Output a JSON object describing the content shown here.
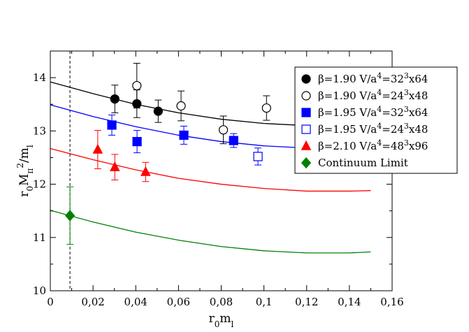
{
  "chart_data": {
    "type": "scatter",
    "title": "",
    "xlabel": {
      "base": "r",
      "sub1": "0",
      "base2": "m",
      "sub2": "l"
    },
    "ylabel": {
      "base": "r",
      "sub1": "0",
      "base2": "M",
      "sub2": "π",
      "sup2": "2",
      "base3": "/m",
      "sub3": "l"
    },
    "xlim": [
      0,
      0.16
    ],
    "ylim": [
      10,
      14.5
    ],
    "xticks": [
      {
        "value": 0,
        "label": "0"
      },
      {
        "value": 0.02,
        "label": "0,02"
      },
      {
        "value": 0.04,
        "label": "0,04"
      },
      {
        "value": 0.06,
        "label": "0,06"
      },
      {
        "value": 0.08,
        "label": "0,08"
      },
      {
        "value": 0.1,
        "label": "0,1"
      },
      {
        "value": 0.12,
        "label": "0,12"
      },
      {
        "value": 0.14,
        "label": "0,14"
      },
      {
        "value": 0.16,
        "label": "0,16"
      }
    ],
    "yticks": [
      {
        "value": 10,
        "label": "10"
      },
      {
        "value": 11,
        "label": "11"
      },
      {
        "value": 12,
        "label": "12"
      },
      {
        "value": 13,
        "label": "13"
      },
      {
        "value": 14,
        "label": "14"
      }
    ],
    "vline": {
      "x": 0.0092,
      "style": "dashed",
      "color": "#000000"
    },
    "legend_placement": "right",
    "grid": false,
    "series": [
      {
        "legend": {
          "pre": "β=1.90 V/a",
          "sup1": "4",
          "mid": "=32",
          "sup2": "3",
          "post": "x64"
        },
        "marker": "circle",
        "filled": true,
        "color": "#000000",
        "points": [
          {
            "x": 0.0302,
            "y": 13.6,
            "err": 0.26
          },
          {
            "x": 0.0405,
            "y": 13.51,
            "err": 0.26
          },
          {
            "x": 0.0505,
            "y": 13.37,
            "err": 0.21
          }
        ]
      },
      {
        "legend": {
          "pre": "β=1.90 V/a",
          "sup1": "4",
          "mid": "=24",
          "sup2": "3",
          "post": "x48"
        },
        "marker": "circle",
        "filled": false,
        "color": "#000000",
        "points": [
          {
            "x": 0.0405,
            "y": 13.85,
            "err": 0.42
          },
          {
            "x": 0.0612,
            "y": 13.47,
            "err": 0.28
          },
          {
            "x": 0.081,
            "y": 13.02,
            "err": 0.26
          },
          {
            "x": 0.1012,
            "y": 13.43,
            "err": 0.23
          }
        ]
      },
      {
        "legend": {
          "pre": "β=1.95 V/a",
          "sup1": "4",
          "mid": "=32",
          "sup2": "3",
          "post": "x64"
        },
        "marker": "square",
        "filled": true,
        "color": "#0000ff",
        "points": [
          {
            "x": 0.0288,
            "y": 13.11,
            "err": 0.19
          },
          {
            "x": 0.0406,
            "y": 12.8,
            "err": 0.21
          },
          {
            "x": 0.0625,
            "y": 12.92,
            "err": 0.17
          },
          {
            "x": 0.0858,
            "y": 12.82,
            "err": 0.13
          }
        ]
      },
      {
        "legend": {
          "pre": "β=1.95 V/a",
          "sup1": "4",
          "mid": "=24",
          "sup2": "3",
          "post": "x48"
        },
        "marker": "square",
        "filled": false,
        "color": "#0000ff",
        "points": [
          {
            "x": 0.0972,
            "y": 12.52,
            "err": 0.16
          }
        ]
      },
      {
        "legend": {
          "pre": "β=2.10 V/a",
          "sup1": "4",
          "mid": "=48",
          "sup2": "3",
          "post": "x96"
        },
        "marker": "triangle",
        "filled": true,
        "color": "#ff0000",
        "points": [
          {
            "x": 0.0222,
            "y": 12.65,
            "err": 0.36
          },
          {
            "x": 0.0302,
            "y": 12.32,
            "err": 0.24
          },
          {
            "x": 0.0446,
            "y": 12.23,
            "err": 0.18
          }
        ]
      },
      {
        "legend": {
          "pre": "Continuum Limit",
          "sup1": "",
          "mid": "",
          "sup2": "",
          "post": ""
        },
        "marker": "diamond",
        "filled": true,
        "color": "#008000",
        "points": [
          {
            "x": 0.0092,
            "y": 11.41,
            "err": 0.54
          }
        ]
      }
    ],
    "fit_curves": [
      {
        "color": "#000000",
        "points": [
          [
            0,
            13.92
          ],
          [
            0.02,
            13.7
          ],
          [
            0.04,
            13.5
          ],
          [
            0.06,
            13.34
          ],
          [
            0.08,
            13.22
          ],
          [
            0.1,
            13.14
          ],
          [
            0.12,
            13.1
          ],
          [
            0.14,
            13.1
          ],
          [
            0.15,
            13.12
          ]
        ]
      },
      {
        "color": "#0000ff",
        "points": [
          [
            0,
            13.49
          ],
          [
            0.02,
            13.27
          ],
          [
            0.04,
            13.08
          ],
          [
            0.06,
            12.92
          ],
          [
            0.08,
            12.8
          ],
          [
            0.1,
            12.72
          ],
          [
            0.12,
            12.68
          ],
          [
            0.14,
            12.68
          ],
          [
            0.15,
            12.7
          ]
        ]
      },
      {
        "color": "#ff0000",
        "points": [
          [
            0,
            12.67
          ],
          [
            0.02,
            12.46
          ],
          [
            0.04,
            12.27
          ],
          [
            0.06,
            12.11
          ],
          [
            0.08,
            12.0
          ],
          [
            0.1,
            11.92
          ],
          [
            0.12,
            11.87
          ],
          [
            0.14,
            11.87
          ],
          [
            0.15,
            11.88
          ]
        ]
      },
      {
        "color": "#008000",
        "points": [
          [
            0,
            11.51
          ],
          [
            0.02,
            11.29
          ],
          [
            0.04,
            11.1
          ],
          [
            0.06,
            10.95
          ],
          [
            0.08,
            10.83
          ],
          [
            0.1,
            10.75
          ],
          [
            0.12,
            10.71
          ],
          [
            0.14,
            10.71
          ],
          [
            0.15,
            10.73
          ]
        ]
      }
    ]
  }
}
